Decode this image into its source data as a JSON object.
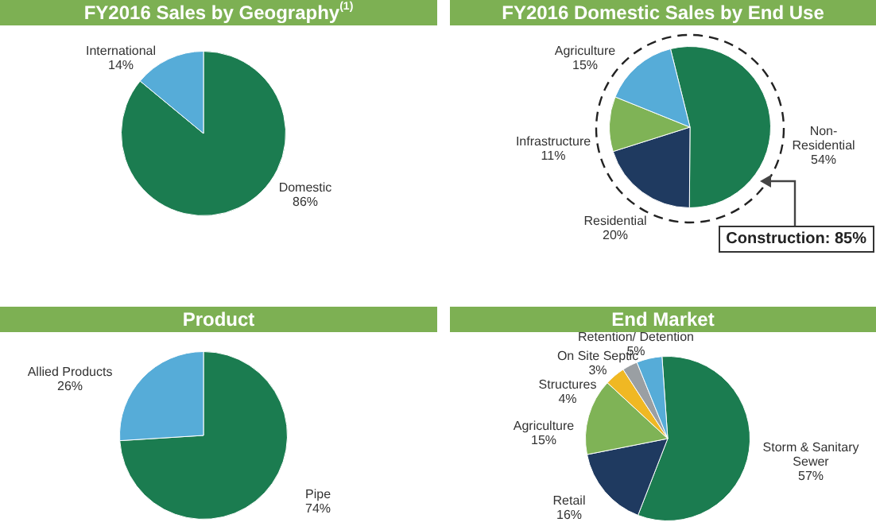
{
  "chart_data": [
    {
      "type": "pie",
      "title": "FY2016 Sales by Geography$^{(1)}$",
      "categories": [
        "Domestic",
        "International"
      ],
      "values": [
        86,
        14
      ],
      "colors": [
        "#1b7c50",
        "#56acd8"
      ],
      "value_labels": [
        "86%",
        "14%"
      ]
    },
    {
      "type": "pie",
      "title": "FY2016 Domestic Sales by End Use",
      "categories": [
        "Non-Residential",
        "Residential",
        "Infrastructure",
        "Agriculture"
      ],
      "values": [
        54,
        20,
        11,
        15
      ],
      "colors": [
        "#1b7c50",
        "#1f3a60",
        "#7fb356",
        "#56acd8"
      ],
      "value_labels": [
        "54%",
        "20%",
        "11%",
        "15%"
      ],
      "annotations": [
        "Construction: 85%"
      ]
    },
    {
      "type": "pie",
      "title": "Product",
      "categories": [
        "Pipe",
        "Allied Products"
      ],
      "values": [
        74,
        26
      ],
      "colors": [
        "#1b7c50",
        "#56acd8"
      ],
      "value_labels": [
        "74%",
        "26%"
      ]
    },
    {
      "type": "pie",
      "title": "End Market",
      "categories": [
        "Storm & Sanitary Sewer",
        "Retail",
        "Agriculture",
        "Structures",
        "On Site Septic",
        "Retention/ Detention"
      ],
      "values": [
        57,
        16,
        15,
        4,
        3,
        5
      ],
      "colors": [
        "#1b7c50",
        "#1f3a60",
        "#7fb356",
        "#f0b823",
        "#9a9fa3",
        "#56acd8"
      ],
      "value_labels": [
        "57%",
        "16%",
        "15%",
        "4%",
        "3%",
        "5%"
      ]
    }
  ]
}
